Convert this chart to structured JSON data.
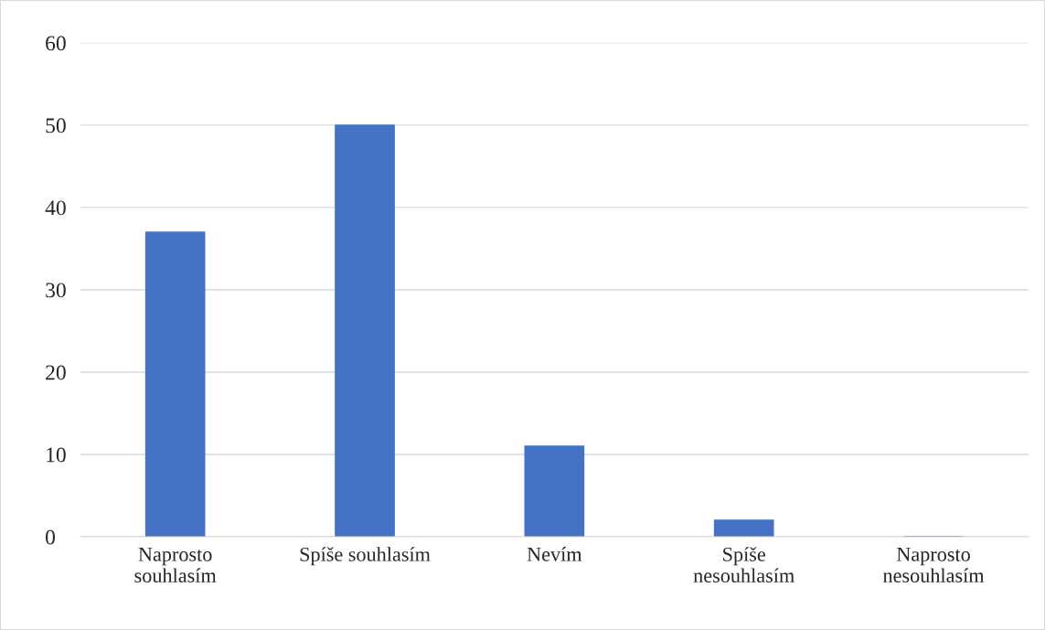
{
  "chart_data": {
    "type": "bar",
    "categories": [
      "Naprosto\nsouhlasím",
      "Spíše souhlasím",
      "Nevím",
      "Spíše\nnesouhlasím",
      "Naprosto\nnesouhlasím"
    ],
    "values": [
      37,
      50,
      11,
      2,
      0
    ],
    "color": "#4472c4",
    "ylim": [
      0,
      60
    ],
    "yticks": [
      0,
      10,
      20,
      30,
      40,
      50,
      60
    ],
    "grid": "y",
    "legend": false
  }
}
